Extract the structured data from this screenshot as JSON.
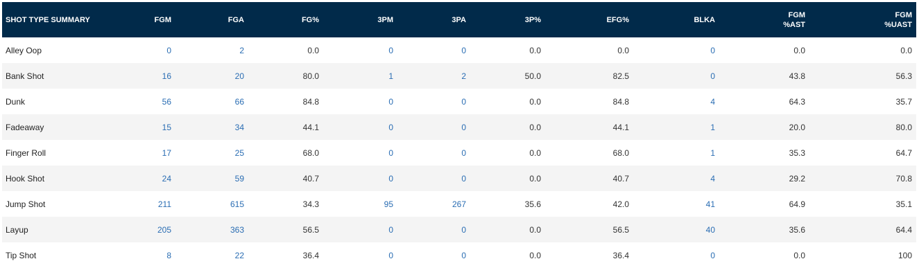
{
  "table": {
    "headers": [
      {
        "line1": "SHOT TYPE SUMMARY",
        "line2": ""
      },
      {
        "line1": "FGM",
        "line2": ""
      },
      {
        "line1": "FGA",
        "line2": ""
      },
      {
        "line1": "FG%",
        "line2": ""
      },
      {
        "line1": "3PM",
        "line2": ""
      },
      {
        "line1": "3PA",
        "line2": ""
      },
      {
        "line1": "3P%",
        "line2": ""
      },
      {
        "line1": "EFG%",
        "line2": ""
      },
      {
        "line1": "BLKA",
        "line2": ""
      },
      {
        "line1": "FGM",
        "line2": "%AST"
      },
      {
        "line1": "FGM",
        "line2": "%UAST"
      }
    ],
    "link_columns": [
      1,
      2,
      4,
      5,
      8
    ],
    "rows": [
      [
        "Alley Oop",
        "0",
        "2",
        "0.0",
        "0",
        "0",
        "0.0",
        "0.0",
        "0",
        "0.0",
        "0.0"
      ],
      [
        "Bank Shot",
        "16",
        "20",
        "80.0",
        "1",
        "2",
        "50.0",
        "82.5",
        "0",
        "43.8",
        "56.3"
      ],
      [
        "Dunk",
        "56",
        "66",
        "84.8",
        "0",
        "0",
        "0.0",
        "84.8",
        "4",
        "64.3",
        "35.7"
      ],
      [
        "Fadeaway",
        "15",
        "34",
        "44.1",
        "0",
        "0",
        "0.0",
        "44.1",
        "1",
        "20.0",
        "80.0"
      ],
      [
        "Finger Roll",
        "17",
        "25",
        "68.0",
        "0",
        "0",
        "0.0",
        "68.0",
        "1",
        "35.3",
        "64.7"
      ],
      [
        "Hook Shot",
        "24",
        "59",
        "40.7",
        "0",
        "0",
        "0.0",
        "40.7",
        "4",
        "29.2",
        "70.8"
      ],
      [
        "Jump Shot",
        "211",
        "615",
        "34.3",
        "95",
        "267",
        "35.6",
        "42.0",
        "41",
        "64.9",
        "35.1"
      ],
      [
        "Layup",
        "205",
        "363",
        "56.5",
        "0",
        "0",
        "0.0",
        "56.5",
        "40",
        "35.6",
        "64.4"
      ],
      [
        "Tip Shot",
        "8",
        "22",
        "36.4",
        "0",
        "0",
        "0.0",
        "36.4",
        "0",
        "0.0",
        "100"
      ]
    ]
  }
}
